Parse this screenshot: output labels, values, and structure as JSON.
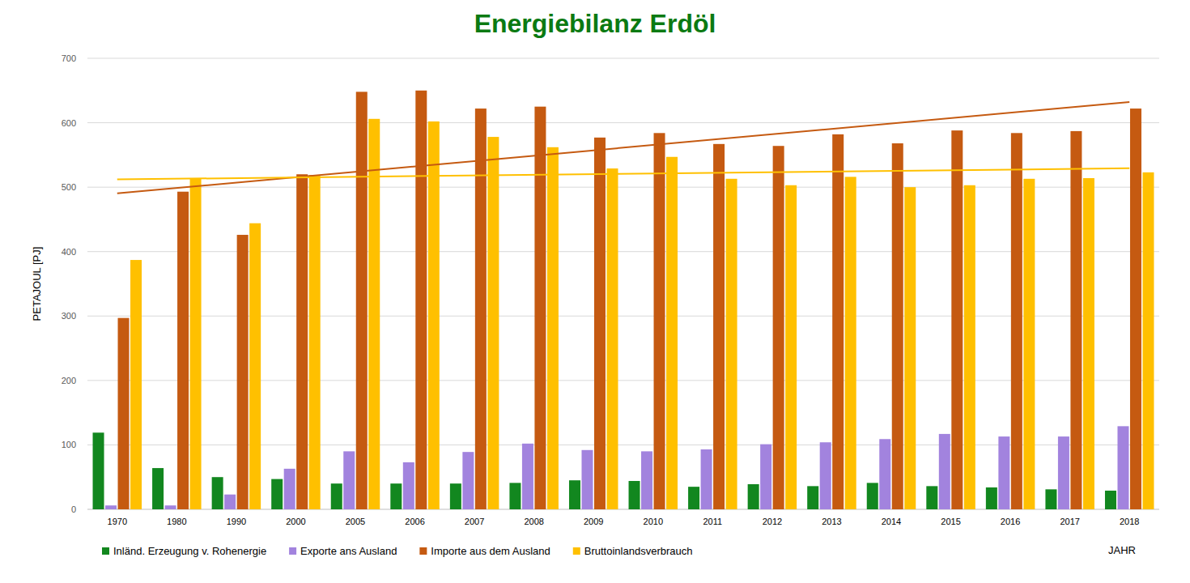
{
  "chart_data": {
    "type": "bar",
    "title": "Energiebilanz Erdöl",
    "x_label": "JAHR",
    "y_label": "PETAJOUL [PJ]",
    "categories": [
      "1970",
      "1980",
      "1990",
      "2000",
      "2005",
      "2006",
      "2007",
      "2008",
      "2009",
      "2010",
      "2011",
      "2012",
      "2013",
      "2014",
      "2015",
      "2016",
      "2017",
      "2018"
    ],
    "series": [
      {
        "name": "Inländ. Erzeugung v. Rohenergie",
        "color": "#12871f",
        "values": [
          119,
          64,
          50,
          47,
          40,
          40,
          40,
          41,
          45,
          44,
          35,
          39,
          36,
          41,
          36,
          34,
          31,
          29
        ]
      },
      {
        "name": "Exporte ans Ausland",
        "color": "#a283de",
        "values": [
          6,
          6,
          23,
          63,
          90,
          73,
          89,
          102,
          92,
          90,
          93,
          101,
          104,
          109,
          117,
          113,
          113,
          129
        ]
      },
      {
        "name": "Importe aus dem Ausland",
        "color": "#c55a11",
        "line_style": "trend",
        "values": [
          297,
          493,
          426,
          520,
          648,
          650,
          622,
          625,
          577,
          584,
          567,
          564,
          582,
          568,
          588,
          584,
          587,
          622
        ]
      },
      {
        "name": "Bruttoinlandsverbrauch",
        "color": "#ffc000",
        "line_style": "trend",
        "values": [
          387,
          513,
          444,
          519,
          606,
          602,
          578,
          562,
          529,
          547,
          513,
          503,
          516,
          500,
          503,
          513,
          514,
          523
        ]
      }
    ],
    "ylim": [
      0,
      700
    ],
    "yticks": [
      0,
      100,
      200,
      300,
      400,
      500,
      600,
      700
    ],
    "grid": true,
    "legend": "bottom-left"
  }
}
